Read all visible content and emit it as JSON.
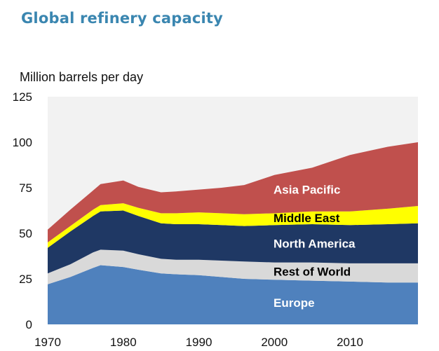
{
  "page": {
    "title": "Global refinery capacity",
    "y_unit": "Million barrels per day"
  },
  "chart_data": {
    "type": "area",
    "stacked": true,
    "title": "Global refinery capacity",
    "ylabel": "Million barrels per day",
    "xlabel": "",
    "xlim": [
      1970,
      2019
    ],
    "ylim": [
      0,
      125
    ],
    "x_ticks": [
      1970,
      1980,
      1990,
      2000,
      2010
    ],
    "y_ticks": [
      0,
      25,
      50,
      75,
      100,
      125
    ],
    "grid": false,
    "plot_background": "#f2f2f2",
    "x": [
      1970,
      1973,
      1976,
      1977,
      1980,
      1982,
      1985,
      1987,
      1990,
      1993,
      1996,
      2000,
      2005,
      2010,
      2015,
      2019
    ],
    "series": [
      {
        "name": "Europe",
        "color": "#4f81bd",
        "label_color": "#ffffff",
        "values": [
          22,
          26,
          31,
          32.5,
          31.5,
          30,
          28,
          27.5,
          27,
          26,
          25,
          24.5,
          24,
          23.5,
          23,
          23
        ]
      },
      {
        "name": "Rest of World",
        "color": "#d9d9d9",
        "label_color": "#000000",
        "values": [
          6,
          7,
          8.5,
          8.5,
          9,
          8.5,
          8,
          8,
          8.5,
          9,
          9.5,
          9.5,
          10,
          10,
          10.5,
          10.5
        ]
      },
      {
        "name": "North America",
        "color": "#1f3864",
        "label_color": "#ffffff",
        "values": [
          14,
          18,
          20,
          21,
          22,
          21,
          19.5,
          19.5,
          19.5,
          19.5,
          19.5,
          20.5,
          21,
          21,
          21.5,
          22
        ]
      },
      {
        "name": "Middle East",
        "color": "#ffff00",
        "label_color": "#000000",
        "values": [
          3,
          3,
          3.5,
          3.5,
          4,
          4.5,
          5.5,
          6,
          6.5,
          6.5,
          6.5,
          6.5,
          7,
          7.5,
          8.5,
          9.5
        ]
      },
      {
        "name": "Asia Pacific",
        "color": "#c0504d",
        "label_color": "#ffffff",
        "values": [
          7,
          9,
          10.5,
          11.5,
          12.5,
          11.5,
          11.5,
          12,
          12.5,
          14,
          16,
          21,
          24,
          31,
          34,
          35
        ]
      }
    ]
  }
}
